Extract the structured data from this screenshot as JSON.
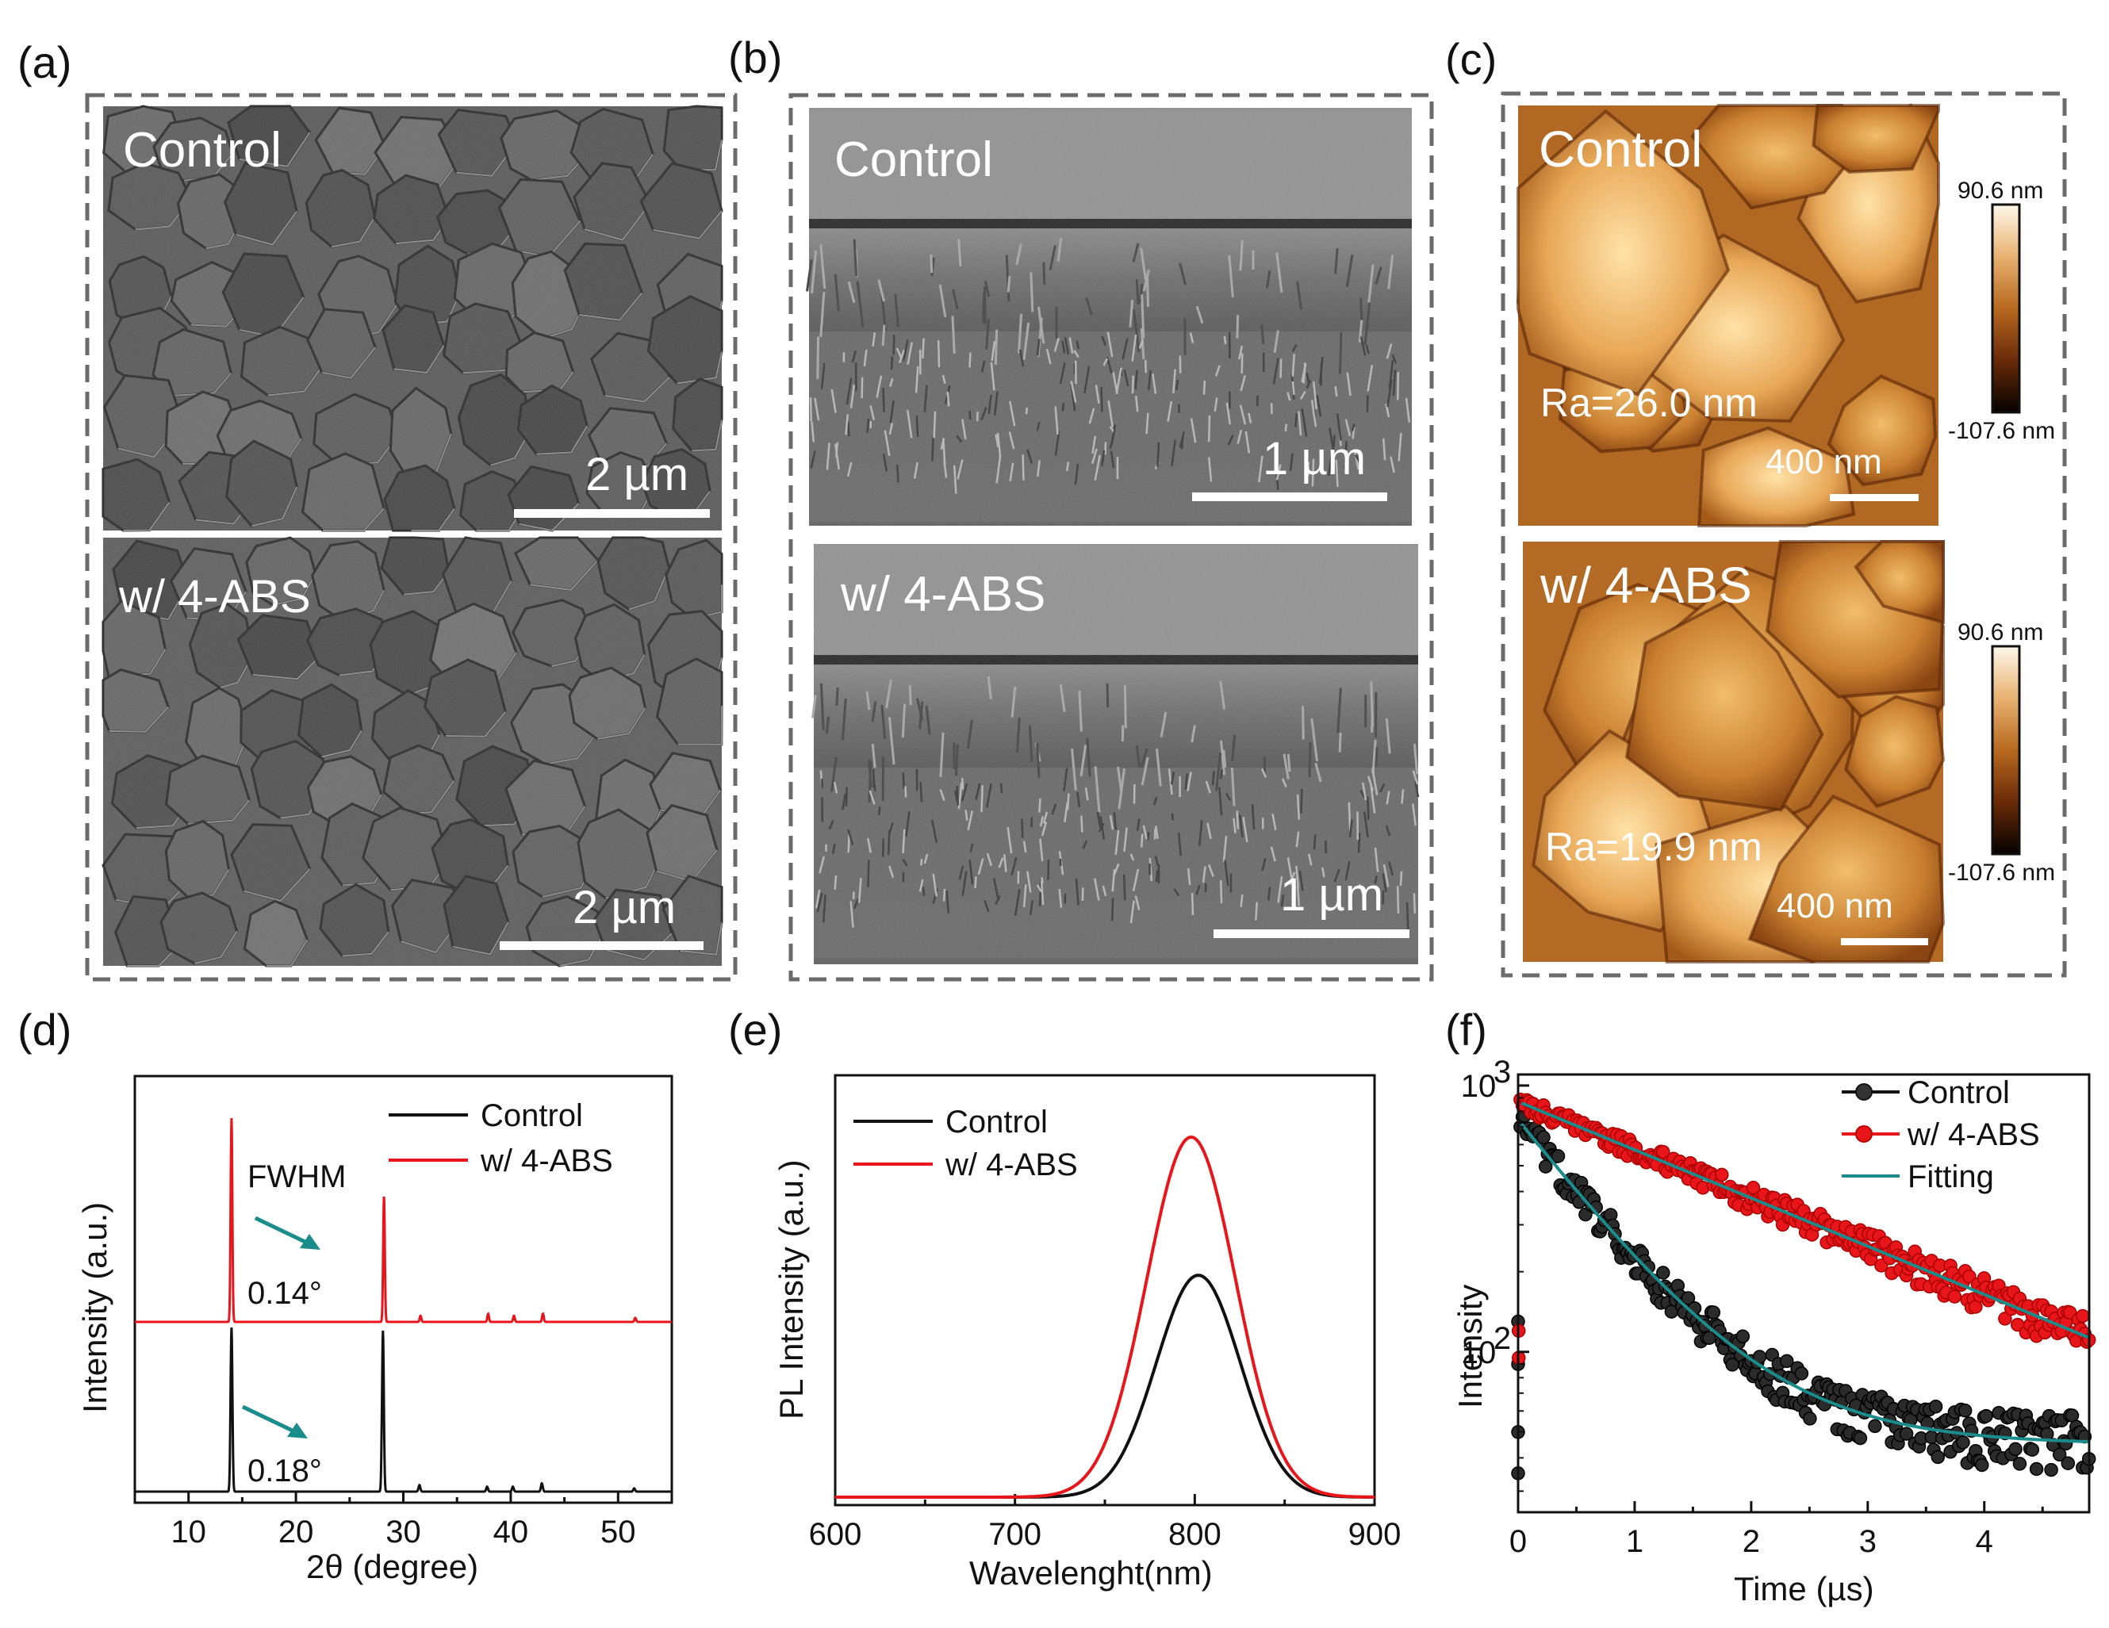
{
  "figure": {
    "panel_labels": [
      "(a)",
      "(b)",
      "(c)",
      "(d)",
      "(e)",
      "(f)"
    ],
    "panel_a": {
      "top": {
        "label": "Control",
        "scalebar": "2 µm"
      },
      "bottom": {
        "label": "w/ 4-ABS",
        "scalebar": "2 µm"
      }
    },
    "panel_b": {
      "top": {
        "label": "Control",
        "scalebar": "1 µm"
      },
      "bottom": {
        "label": "w/ 4-ABS",
        "scalebar": "1 µm"
      }
    },
    "panel_c": {
      "top": {
        "label": "Control",
        "ra": "Ra=26.0 nm",
        "scalebar": "400 nm",
        "cbar_max": "90.6 nm",
        "cbar_min": "-107.6 nm"
      },
      "bottom": {
        "label": "w/ 4-ABS",
        "ra": "Ra=19.9 nm",
        "scalebar": "400 nm",
        "cbar_max": "90.6 nm",
        "cbar_min": "-107.6 nm"
      }
    }
  },
  "colors": {
    "control": "#111111",
    "abs": "#e8161b",
    "fitting": "#1b8c8c"
  },
  "chart_data": [
    {
      "type": "line",
      "panel": "(d)",
      "xlabel": "2θ (degree)",
      "ylabel": "Intensity (a.u.)",
      "xlim": [
        5,
        55
      ],
      "xticks": [
        10,
        20,
        30,
        40,
        50
      ],
      "legend": [
        "Control",
        "w/ 4-ABS"
      ],
      "annotations": {
        "fwhm": "FWHM",
        "abs": "0.14°",
        "control": "0.18°"
      },
      "series": [
        {
          "name": "Control",
          "peaks": [
            [
              14.0,
              1.0
            ],
            [
              28.1,
              0.98
            ],
            [
              31.5,
              0.04
            ],
            [
              37.8,
              0.03
            ],
            [
              40.2,
              0.03
            ],
            [
              42.9,
              0.05
            ],
            [
              51.5,
              0.02
            ]
          ]
        },
        {
          "name": "w/ 4-ABS",
          "peaks": [
            [
              14.0,
              1.0
            ],
            [
              28.2,
              0.62
            ],
            [
              31.6,
              0.03
            ],
            [
              37.9,
              0.04
            ],
            [
              40.3,
              0.03
            ],
            [
              43.0,
              0.04
            ],
            [
              51.6,
              0.02
            ]
          ]
        }
      ]
    },
    {
      "type": "line",
      "panel": "(e)",
      "xlabel": "Wavelenght(nm)",
      "ylabel": "PL Intensity (a.u.)",
      "xlim": [
        600,
        900
      ],
      "xticks": [
        600,
        700,
        800,
        900
      ],
      "legend": [
        "Control",
        "w/ 4-ABS"
      ],
      "series": [
        {
          "name": "Control",
          "peak_nm": 802,
          "fwhm_nm": 55,
          "relative_height": 0.53
        },
        {
          "name": "w/ 4-ABS",
          "peak_nm": 798,
          "fwhm_nm": 58,
          "relative_height": 0.86
        }
      ]
    },
    {
      "type": "scatter",
      "panel": "(f)",
      "xlabel": "Time (µs)",
      "ylabel": "Intensity",
      "xlim": [
        0,
        4.9
      ],
      "ylim": [
        25,
        1100
      ],
      "xticks": [
        0,
        1,
        2,
        3,
        4
      ],
      "yticks": [
        {
          "value": 100,
          "label": "10",
          "exp": "2"
        },
        {
          "value": 1000,
          "label": "10",
          "exp": "3"
        }
      ],
      "legend": [
        "Control",
        "w/ 4-ABS",
        "Fitting"
      ],
      "series": [
        {
          "name": "Control",
          "fit": {
            "a1": 700,
            "tau1": 0.75,
            "offset": 45
          }
        },
        {
          "name": "w/ 4-ABS",
          "fit": {
            "a1": 870,
            "tau1": 2.4,
            "offset": 0
          }
        }
      ]
    }
  ]
}
